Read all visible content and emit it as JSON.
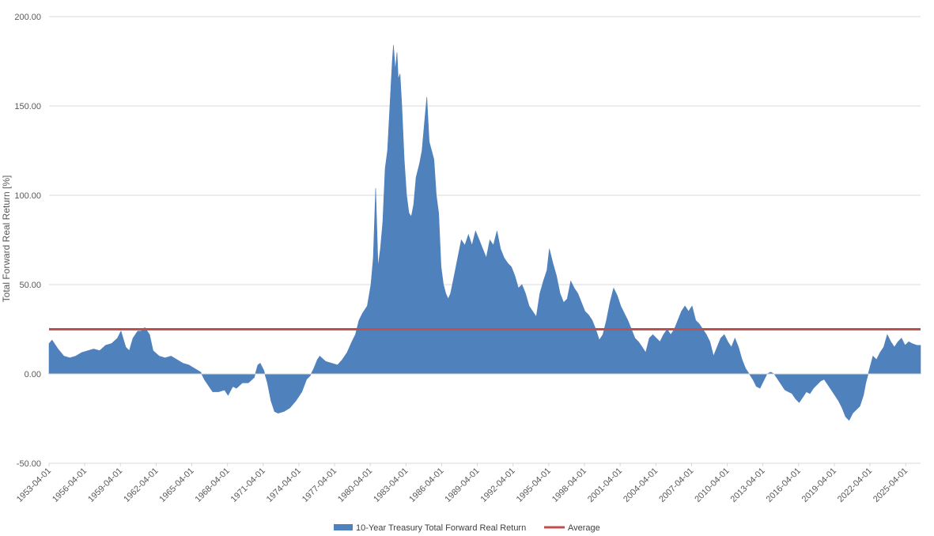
{
  "chart_data": {
    "type": "area",
    "ylabel": "Total Forward Real Return [%]",
    "xlabel": "",
    "ylim": [
      -50,
      200
    ],
    "yticks": [
      "-50.00",
      "0.00",
      "50.00",
      "100.00",
      "150.00",
      "200.00"
    ],
    "ytick_values": [
      -50,
      0,
      50,
      100,
      150,
      200
    ],
    "grid": true,
    "legend_position": "bottom",
    "xticks": [
      "1953-04-01",
      "1956-04-01",
      "1959-04-01",
      "1962-04-01",
      "1965-04-01",
      "1968-04-01",
      "1971-04-01",
      "1974-04-01",
      "1977-04-01",
      "1980-04-01",
      "1983-04-01",
      "1986-04-01",
      "1989-04-01",
      "1992-04-01",
      "1995-04-01",
      "1998-04-01",
      "2001-04-01",
      "2004-04-01",
      "2007-04-01",
      "2010-04-01",
      "2013-04-01",
      "2016-04-01",
      "2019-04-01",
      "2022-04-01",
      "2025-04-01"
    ],
    "x_start": 1953.25,
    "x_end": 2026.5,
    "series": [
      {
        "name": "10-Year Treasury Total Forward Real Return",
        "kind": "area",
        "color": "#4f81bd",
        "points": [
          [
            1953.25,
            17
          ],
          [
            1953.5,
            19
          ],
          [
            1954.0,
            14
          ],
          [
            1954.5,
            10
          ],
          [
            1955.0,
            9
          ],
          [
            1955.5,
            10
          ],
          [
            1956.0,
            12
          ],
          [
            1956.5,
            13
          ],
          [
            1957.0,
            14
          ],
          [
            1957.5,
            13
          ],
          [
            1958.0,
            16
          ],
          [
            1958.5,
            17
          ],
          [
            1959.0,
            20
          ],
          [
            1959.3,
            24
          ],
          [
            1959.7,
            15
          ],
          [
            1960.0,
            13
          ],
          [
            1960.3,
            20
          ],
          [
            1960.7,
            24
          ],
          [
            1961.0,
            24
          ],
          [
            1961.3,
            26
          ],
          [
            1961.7,
            22
          ],
          [
            1962.0,
            13
          ],
          [
            1962.5,
            10
          ],
          [
            1963.0,
            9
          ],
          [
            1963.5,
            10
          ],
          [
            1964.0,
            8
          ],
          [
            1964.5,
            6
          ],
          [
            1965.0,
            5
          ],
          [
            1965.5,
            3
          ],
          [
            1966.0,
            1
          ],
          [
            1966.3,
            -3
          ],
          [
            1966.7,
            -7
          ],
          [
            1967.0,
            -10
          ],
          [
            1967.5,
            -10
          ],
          [
            1968.0,
            -9
          ],
          [
            1968.3,
            -12
          ],
          [
            1968.7,
            -7
          ],
          [
            1969.0,
            -8
          ],
          [
            1969.5,
            -5
          ],
          [
            1970.0,
            -5
          ],
          [
            1970.5,
            -2
          ],
          [
            1970.8,
            5
          ],
          [
            1971.0,
            6
          ],
          [
            1971.3,
            2
          ],
          [
            1971.6,
            -5
          ],
          [
            1971.9,
            -15
          ],
          [
            1972.2,
            -21
          ],
          [
            1972.5,
            -22
          ],
          [
            1973.0,
            -21
          ],
          [
            1973.5,
            -19
          ],
          [
            1974.0,
            -15
          ],
          [
            1974.5,
            -10
          ],
          [
            1974.9,
            -3
          ],
          [
            1975.2,
            -1
          ],
          [
            1975.5,
            3
          ],
          [
            1975.8,
            8
          ],
          [
            1976.0,
            10
          ],
          [
            1976.5,
            7
          ],
          [
            1977.0,
            6
          ],
          [
            1977.5,
            5
          ],
          [
            1977.9,
            8
          ],
          [
            1978.3,
            12
          ],
          [
            1978.7,
            18
          ],
          [
            1979.0,
            22
          ],
          [
            1979.3,
            30
          ],
          [
            1979.6,
            34
          ],
          [
            1980.0,
            38
          ],
          [
            1980.3,
            50
          ],
          [
            1980.5,
            65
          ],
          [
            1980.7,
            104
          ],
          [
            1980.9,
            60
          ],
          [
            1981.1,
            70
          ],
          [
            1981.3,
            85
          ],
          [
            1981.5,
            115
          ],
          [
            1981.7,
            125
          ],
          [
            1981.9,
            150
          ],
          [
            1982.1,
            175
          ],
          [
            1982.2,
            184
          ],
          [
            1982.35,
            170
          ],
          [
            1982.5,
            180
          ],
          [
            1982.6,
            165
          ],
          [
            1982.75,
            168
          ],
          [
            1982.9,
            150
          ],
          [
            1983.1,
            120
          ],
          [
            1983.3,
            100
          ],
          [
            1983.5,
            90
          ],
          [
            1983.7,
            88
          ],
          [
            1983.9,
            95
          ],
          [
            1984.1,
            110
          ],
          [
            1984.4,
            118
          ],
          [
            1984.6,
            125
          ],
          [
            1984.8,
            140
          ],
          [
            1985.0,
            155
          ],
          [
            1985.2,
            130
          ],
          [
            1985.4,
            125
          ],
          [
            1985.6,
            120
          ],
          [
            1985.8,
            100
          ],
          [
            1986.0,
            90
          ],
          [
            1986.2,
            60
          ],
          [
            1986.4,
            50
          ],
          [
            1986.6,
            45
          ],
          [
            1986.8,
            42
          ],
          [
            1987.0,
            45
          ],
          [
            1987.3,
            55
          ],
          [
            1987.6,
            65
          ],
          [
            1987.9,
            75
          ],
          [
            1988.2,
            72
          ],
          [
            1988.5,
            78
          ],
          [
            1988.8,
            72
          ],
          [
            1989.1,
            80
          ],
          [
            1989.4,
            75
          ],
          [
            1989.7,
            70
          ],
          [
            1990.0,
            65
          ],
          [
            1990.3,
            75
          ],
          [
            1990.6,
            72
          ],
          [
            1990.9,
            80
          ],
          [
            1991.2,
            70
          ],
          [
            1991.5,
            65
          ],
          [
            1991.8,
            62
          ],
          [
            1992.1,
            60
          ],
          [
            1992.4,
            55
          ],
          [
            1992.7,
            48
          ],
          [
            1993.0,
            50
          ],
          [
            1993.3,
            45
          ],
          [
            1993.6,
            38
          ],
          [
            1993.9,
            35
          ],
          [
            1994.2,
            32
          ],
          [
            1994.5,
            45
          ],
          [
            1994.8,
            52
          ],
          [
            1995.1,
            58
          ],
          [
            1995.3,
            70
          ],
          [
            1995.6,
            62
          ],
          [
            1995.9,
            55
          ],
          [
            1996.2,
            45
          ],
          [
            1996.5,
            40
          ],
          [
            1996.8,
            42
          ],
          [
            1997.1,
            52
          ],
          [
            1997.4,
            48
          ],
          [
            1997.7,
            45
          ],
          [
            1998.0,
            40
          ],
          [
            1998.3,
            35
          ],
          [
            1998.6,
            33
          ],
          [
            1998.9,
            30
          ],
          [
            1999.2,
            25
          ],
          [
            1999.5,
            19
          ],
          [
            1999.8,
            22
          ],
          [
            2000.1,
            30
          ],
          [
            2000.4,
            40
          ],
          [
            2000.7,
            48
          ],
          [
            2001.0,
            44
          ],
          [
            2001.3,
            38
          ],
          [
            2001.6,
            34
          ],
          [
            2001.9,
            30
          ],
          [
            2002.2,
            25
          ],
          [
            2002.5,
            20
          ],
          [
            2002.8,
            18
          ],
          [
            2003.1,
            15
          ],
          [
            2003.4,
            12
          ],
          [
            2003.7,
            20
          ],
          [
            2004.0,
            22
          ],
          [
            2004.3,
            20
          ],
          [
            2004.6,
            18
          ],
          [
            2004.9,
            22
          ],
          [
            2005.2,
            25
          ],
          [
            2005.5,
            22
          ],
          [
            2005.8,
            25
          ],
          [
            2006.1,
            30
          ],
          [
            2006.4,
            35
          ],
          [
            2006.7,
            38
          ],
          [
            2007.0,
            35
          ],
          [
            2007.3,
            38
          ],
          [
            2007.6,
            30
          ],
          [
            2007.9,
            28
          ],
          [
            2008.2,
            25
          ],
          [
            2008.5,
            22
          ],
          [
            2008.8,
            18
          ],
          [
            2009.1,
            10
          ],
          [
            2009.4,
            15
          ],
          [
            2009.7,
            20
          ],
          [
            2010.0,
            22
          ],
          [
            2010.3,
            18
          ],
          [
            2010.6,
            15
          ],
          [
            2010.9,
            20
          ],
          [
            2011.2,
            15
          ],
          [
            2011.5,
            8
          ],
          [
            2011.8,
            3
          ],
          [
            2012.1,
            0
          ],
          [
            2012.4,
            -3
          ],
          [
            2012.7,
            -7
          ],
          [
            2013.0,
            -8
          ],
          [
            2013.3,
            -4
          ],
          [
            2013.6,
            0
          ],
          [
            2013.9,
            1
          ],
          [
            2014.2,
            0
          ],
          [
            2014.5,
            -3
          ],
          [
            2014.8,
            -6
          ],
          [
            2015.1,
            -9
          ],
          [
            2015.4,
            -10
          ],
          [
            2015.7,
            -11
          ],
          [
            2016.0,
            -14
          ],
          [
            2016.3,
            -16
          ],
          [
            2016.6,
            -13
          ],
          [
            2016.9,
            -10
          ],
          [
            2017.2,
            -11
          ],
          [
            2017.5,
            -8
          ],
          [
            2017.8,
            -6
          ],
          [
            2018.1,
            -4
          ],
          [
            2018.4,
            -3
          ],
          [
            2018.7,
            -6
          ],
          [
            2019.0,
            -9
          ],
          [
            2019.3,
            -12
          ],
          [
            2019.6,
            -15
          ],
          [
            2019.9,
            -19
          ],
          [
            2020.2,
            -24
          ],
          [
            2020.5,
            -26
          ],
          [
            2020.8,
            -22
          ],
          [
            2021.1,
            -20
          ],
          [
            2021.4,
            -18
          ],
          [
            2021.7,
            -12
          ],
          [
            2021.9,
            -5
          ],
          [
            2022.1,
            0
          ],
          [
            2022.3,
            5
          ],
          [
            2022.5,
            10
          ],
          [
            2022.8,
            8
          ],
          [
            2023.1,
            12
          ],
          [
            2023.4,
            15
          ],
          [
            2023.7,
            22
          ],
          [
            2024.0,
            18
          ],
          [
            2024.3,
            15
          ],
          [
            2024.6,
            18
          ],
          [
            2024.9,
            20
          ],
          [
            2025.2,
            16
          ],
          [
            2025.5,
            18
          ],
          [
            2025.8,
            17
          ],
          [
            2026.2,
            16
          ],
          [
            2026.5,
            16
          ]
        ]
      },
      {
        "name": "Average",
        "kind": "line",
        "color": "#c0504d",
        "value": 25
      }
    ]
  }
}
